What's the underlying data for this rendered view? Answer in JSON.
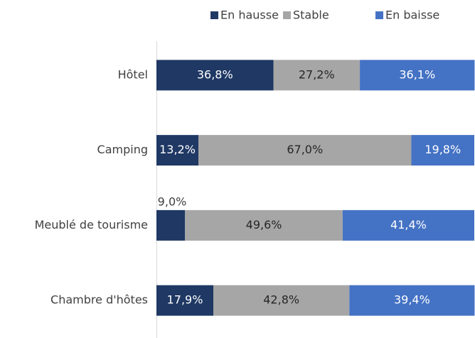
{
  "chart_data": {
    "type": "stacked-barh",
    "categories": [
      "Hôtel",
      "Camping",
      "Meublé de tourisme",
      "Chambre d'hôtes"
    ],
    "series": [
      {
        "name": "En hausse",
        "color": "#1f3864",
        "values": [
          36.8,
          13.2,
          9.0,
          17.9
        ],
        "value_labels": [
          "36,8%",
          "13,2%",
          "9,0%",
          "17,9%"
        ]
      },
      {
        "name": "Stable",
        "color": "#a6a6a6",
        "values": [
          27.2,
          67.0,
          49.6,
          42.8
        ],
        "value_labels": [
          "27,2%",
          "67,0%",
          "49,6%",
          "42,8%"
        ]
      },
      {
        "name": "En baisse",
        "color": "#4472c4",
        "values": [
          36.1,
          19.8,
          41.4,
          39.4
        ],
        "value_labels": [
          "36,1%",
          "19,8%",
          "41,4%",
          "39,4%"
        ]
      }
    ],
    "xlim": [
      0,
      100
    ],
    "legend": "top"
  }
}
